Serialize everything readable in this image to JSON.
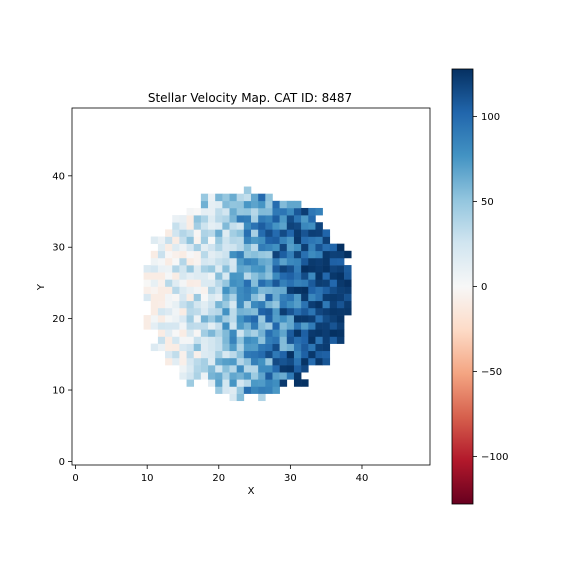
{
  "chart_data": {
    "type": "heatmap",
    "title": "Stellar Velocity Map. CAT ID: 8487",
    "xlabel": "X",
    "ylabel": "Y",
    "xlim": [
      -0.5,
      49.5
    ],
    "ylim": [
      -0.5,
      49.5
    ],
    "x_ticks": [
      0,
      10,
      20,
      30,
      40
    ],
    "y_ticks": [
      0,
      10,
      20,
      30,
      40
    ],
    "grid": false,
    "colormap": "RdBu",
    "colorbar": {
      "vmin": -128,
      "vmax": 128,
      "ticks": [
        -100,
        -50,
        0,
        50,
        100
      ]
    },
    "colors": {
      "low": "#67001f",
      "mid": "#f7f7f7",
      "high": "#053061"
    },
    "map": {
      "center": [
        24,
        23.5
      ],
      "radius": 14.5,
      "x_range": [
        9,
        38
      ],
      "y_range": [
        9,
        38
      ],
      "velocity_gradient": "increases toward larger X; approximately -40 at X=9 to +120 at X=38",
      "negative_pixels": [
        [
          9,
          21
        ],
        [
          10,
          21
        ],
        [
          9,
          30
        ],
        [
          26,
          38
        ]
      ]
    }
  }
}
